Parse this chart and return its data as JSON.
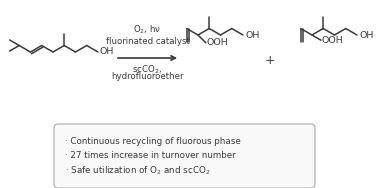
{
  "bg_color": "#ffffff",
  "line_color": "#3a3a3a",
  "line_width": 1.1,
  "arrow_color": "#3a3a3a",
  "text_color": "#3a3a3a",
  "reaction_conditions_line1": "O$_2$, hν",
  "reaction_conditions_line2": "fluorinated catalyst",
  "reaction_conditions_line3": "scCO$_2$,",
  "reaction_conditions_line4": "hydrofluoroether",
  "plus_sign": "+",
  "bullet_lines": [
    "· Continuous recycling of fluorous phase",
    "· 27 times increase in turnover number",
    "· Safe utilization of O$_2$ and scCO$_2$"
  ],
  "box_edge_color": "#aaaaaa",
  "box_fill": "#f9f9f9",
  "font_size_conditions": 6.2,
  "font_size_bullet": 6.3,
  "font_size_labels": 6.8,
  "font_size_plus": 9
}
